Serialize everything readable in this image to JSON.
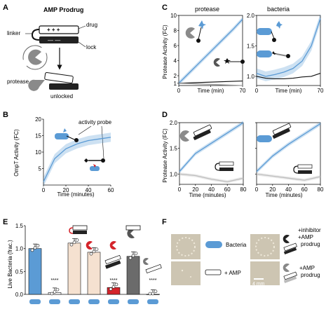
{
  "colors": {
    "blue": "#5b9bd5",
    "blue_light": "#b9d4ee",
    "black": "#111111",
    "gray": "#9a9a9a",
    "red": "#d4242b",
    "peach": "#f5e1d0",
    "dark_gray": "#6b6b6b",
    "plate_bg": "#cfc7b4"
  },
  "panelA": {
    "label": "A",
    "title": "AMP Prodrug",
    "linker": "linker",
    "drug": "drug",
    "lock": "lock",
    "protease": "protease",
    "unlocked": "unlocked",
    "charges_plus": "+ + +",
    "charges_minus": "— —"
  },
  "panelB": {
    "label": "B",
    "annotation": "activity probe",
    "ylabel": "OmpT Activity (FC)",
    "xlabel": "Time (minutes)",
    "yticks": [
      "5",
      "10",
      "15",
      "20"
    ],
    "xticks": [
      "0",
      "20",
      "40",
      "60"
    ]
  },
  "panelC": {
    "label": "C",
    "left_title": "protease",
    "right_title": "bacteria",
    "ylabel": "Protease Activity (FC)",
    "left_yticks": [
      "1",
      "2",
      "4",
      "6",
      "8",
      "10"
    ],
    "left_xticks": [
      "0",
      "Time (min)",
      "70"
    ],
    "right_yticks": [
      "1.0",
      "1.5",
      "2.0"
    ],
    "right_xticks": [
      "0",
      "Time (min)",
      "70"
    ]
  },
  "panelD": {
    "label": "D",
    "ylabel": "Protease Activity (FC)",
    "xlabel": "Time (minutes)",
    "yticks": [
      "1.0",
      "1.5",
      "2.0"
    ],
    "xticks": [
      "0",
      "20",
      "40",
      "60",
      "80"
    ]
  },
  "panelE": {
    "label": "E",
    "ylabel": "Live Bacteria (frac.)",
    "yticks": [
      "0.0",
      "0.5",
      "1.0",
      "1.5"
    ],
    "stars": "****"
  },
  "panelF": {
    "label": "F",
    "bacteria": "Bacteria",
    "amp": "+ AMP",
    "inhibitor_line1": "+inhibitor",
    "inhibitor_line2": "+AMP",
    "inhibitor_line3": "prodrug",
    "prodrug_line1": "+AMP",
    "prodrug_line2": "prodrug",
    "scale": "4 mm"
  },
  "chart_data": [
    {
      "panel": "B",
      "type": "line",
      "title": "",
      "xlabel": "Time (minutes)",
      "ylabel": "OmpT Activity (FC)",
      "xlim": [
        0,
        60
      ],
      "ylim": [
        0,
        20
      ],
      "series": [
        {
          "x": [
            0,
            10,
            20,
            30,
            40,
            50,
            60
          ],
          "values": [
            1,
            8,
            11,
            12.5,
            13.5,
            14,
            14.5
          ]
        }
      ]
    },
    {
      "panel": "C-left",
      "type": "line",
      "title": "protease",
      "xlabel": "Time (min)",
      "ylabel": "Protease Activity (FC)",
      "xlim": [
        0,
        70
      ],
      "ylim": [
        0,
        10
      ],
      "series": [
        {
          "x": [
            0,
            10,
            20,
            30,
            40,
            50,
            60,
            70
          ],
          "values": [
            1,
            2.2,
            3.4,
            4.6,
            5.8,
            7,
            8.2,
            9.5
          ]
        },
        {
          "x": [
            0,
            70
          ],
          "values": [
            1,
            1.3
          ]
        },
        {
          "x": [
            0,
            70
          ],
          "values": [
            1,
            0.7
          ]
        }
      ]
    },
    {
      "panel": "C-right",
      "type": "line",
      "title": "bacteria",
      "xlabel": "Time (min)",
      "ylabel": "Protease Activity (FC)",
      "xlim": [
        0,
        70
      ],
      "ylim": [
        0.85,
        2.0
      ],
      "series": [
        {
          "x": [
            0,
            10,
            20,
            30,
            40,
            50,
            60,
            70
          ],
          "values": [
            1.05,
            1.0,
            1.03,
            1.07,
            1.13,
            1.25,
            1.5,
            1.95
          ]
        },
        {
          "x": [
            0,
            10,
            20,
            30,
            40,
            50,
            60,
            70
          ],
          "values": [
            1.0,
            0.97,
            0.96,
            0.96,
            0.97,
            0.99,
            1.0,
            1.05
          ]
        }
      ]
    },
    {
      "panel": "D-left",
      "type": "line",
      "xlabel": "Time (minutes)",
      "ylabel": "Protease Activity (FC)",
      "xlim": [
        0,
        80
      ],
      "ylim": [
        0.8,
        2.0
      ],
      "series": [
        {
          "x": [
            0,
            20,
            40,
            60,
            80
          ],
          "values": [
            1.05,
            1.4,
            1.6,
            1.8,
            2.0
          ]
        },
        {
          "x": [
            0,
            20,
            40,
            60,
            80
          ],
          "values": [
            1.0,
            0.97,
            0.9,
            0.85,
            0.92
          ]
        }
      ]
    },
    {
      "panel": "D-right",
      "type": "line",
      "xlabel": "Time (minutes)",
      "ylabel": "Protease Activity (FC)",
      "xlim": [
        0,
        80
      ],
      "ylim": [
        0.8,
        2.0
      ],
      "series": [
        {
          "x": [
            0,
            20,
            40,
            60,
            80
          ],
          "values": [
            1.05,
            1.35,
            1.58,
            1.78,
            1.98
          ]
        },
        {
          "x": [
            0,
            20,
            40,
            60,
            80
          ],
          "values": [
            1.0,
            0.96,
            0.92,
            0.88,
            0.95
          ]
        }
      ]
    },
    {
      "panel": "E",
      "type": "bar",
      "ylabel": "Live Bacteria (frac.)",
      "ylim": [
        0,
        1.5
      ],
      "categories": [
        "1",
        "2",
        "3",
        "4",
        "5",
        "6",
        "7"
      ],
      "values": [
        1.0,
        0.04,
        1.12,
        0.92,
        0.15,
        0.83,
        0.0
      ],
      "colors": [
        "#5b9bd5",
        "#ffffff",
        "#f5e1d0",
        "#f5e1d0",
        "#d4242b",
        "#6b6b6b",
        "#ffffff"
      ]
    }
  ]
}
